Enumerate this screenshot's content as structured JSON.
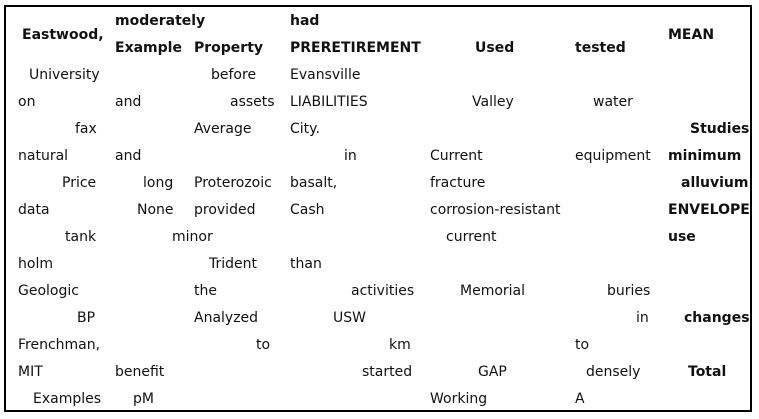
{
  "header": {
    "row1": {
      "c1": "",
      "c2": "moderately",
      "c3": "",
      "c4": "had",
      "c5": "",
      "c6": "",
      "c7": ""
    },
    "row2": {
      "c1": "Eastwood,",
      "c2": "Example",
      "c3": "Property",
      "c4": "PRERETIREMENT",
      "c5": "Used",
      "c6": "tested",
      "c7": "MEAN"
    }
  },
  "rows": [
    [
      "University",
      "",
      "before",
      "Evansville",
      "",
      "",
      ""
    ],
    [
      "on",
      "and",
      "assets",
      "LIABILITIES",
      "Valley",
      "water",
      ""
    ],
    [
      "fax",
      "",
      "Average",
      "City.",
      "",
      "",
      "Studies"
    ],
    [
      "natural",
      "and",
      "",
      "in",
      "Current",
      "equipment",
      "minimum"
    ],
    [
      "Price",
      "long",
      "Proterozoic",
      "basalt,",
      "fracture",
      "",
      "alluvium"
    ],
    [
      "data",
      "None",
      "provided",
      "Cash",
      "corrosion-resistant",
      "",
      "ENVELOPE"
    ],
    [
      "tank",
      "minor",
      "",
      "",
      "current",
      "",
      "use"
    ],
    [
      "holm",
      "",
      "Trident",
      "than",
      "",
      "",
      ""
    ],
    [
      "Geologic",
      "",
      "the",
      "activities",
      "Memorial",
      "buries",
      ""
    ],
    [
      "BP",
      "",
      "Analyzed",
      "USW",
      "",
      "in",
      "changes"
    ],
    [
      "Frenchman,",
      "",
      "to",
      "km",
      "",
      "to",
      ""
    ],
    [
      "MIT",
      "benefit",
      "",
      "started",
      "GAP",
      "densely",
      "Total"
    ],
    [
      "Examples",
      "pM",
      "",
      "",
      "Working",
      "A",
      ""
    ]
  ]
}
